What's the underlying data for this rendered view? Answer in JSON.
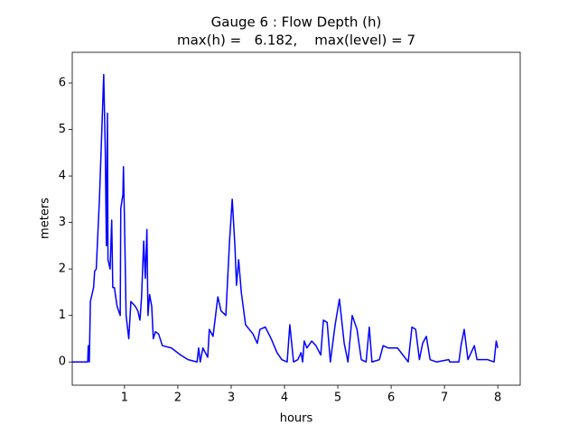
{
  "chart_data": {
    "type": "line",
    "title": "Gauge 6 : Flow Depth (h)",
    "subtitle": "max(h) =   6.182,    max(level) = 7",
    "x_label": "hours",
    "y_label": "meters",
    "color": "#0000ff",
    "xlim": [
      0.02,
      8.42
    ],
    "ylim": [
      -0.5,
      6.66
    ],
    "xticks": [
      1,
      2,
      3,
      4,
      5,
      6,
      7,
      8
    ],
    "yticks": [
      0,
      1,
      2,
      3,
      4,
      5,
      6
    ],
    "x": [
      0.02,
      0.31,
      0.32,
      0.34,
      0.36,
      0.42,
      0.44,
      0.47,
      0.49,
      0.53,
      0.56,
      0.59,
      0.61,
      0.64,
      0.66,
      0.68,
      0.69,
      0.73,
      0.76,
      0.78,
      0.81,
      0.86,
      0.92,
      0.93,
      0.97,
      0.98,
      1.0,
      1.03,
      1.08,
      1.12,
      1.2,
      1.25,
      1.29,
      1.32,
      1.36,
      1.39,
      1.42,
      1.44,
      1.47,
      1.51,
      1.54,
      1.58,
      1.64,
      1.71,
      1.88,
      2.05,
      2.19,
      2.36,
      2.39,
      2.42,
      2.47,
      2.56,
      2.59,
      2.66,
      2.75,
      2.81,
      2.9,
      2.97,
      3.02,
      3.07,
      3.1,
      3.14,
      3.19,
      3.27,
      3.34,
      3.41,
      3.49,
      3.54,
      3.64,
      3.75,
      3.86,
      3.95,
      4.05,
      4.1,
      4.17,
      4.25,
      4.31,
      4.34,
      4.37,
      4.42,
      4.51,
      4.59,
      4.68,
      4.73,
      4.8,
      4.86,
      4.95,
      5.03,
      5.12,
      5.19,
      5.27,
      5.36,
      5.44,
      5.53,
      5.59,
      5.64,
      5.78,
      5.85,
      5.95,
      6.12,
      6.22,
      6.32,
      6.39,
      6.46,
      6.53,
      6.59,
      6.66,
      6.73,
      6.85,
      7.08,
      7.1,
      7.27,
      7.31,
      7.37,
      7.44,
      7.56,
      7.61,
      7.81,
      7.93,
      7.97,
      8.0
    ],
    "values": [
      0,
      0,
      0.35,
      0,
      1.3,
      1.6,
      1.95,
      2.0,
      2.5,
      3.5,
      4.5,
      5.5,
      6.182,
      4.5,
      2.5,
      5.35,
      2.2,
      2.0,
      3.05,
      1.6,
      1.6,
      1.2,
      1.0,
      3.3,
      3.6,
      4.2,
      3.0,
      1.0,
      0.5,
      1.3,
      1.2,
      1.1,
      0.9,
      1.4,
      2.6,
      1.8,
      2.85,
      1.0,
      1.45,
      1.2,
      0.5,
      0.65,
      0.6,
      0.35,
      0.3,
      0.15,
      0.05,
      0,
      0.3,
      0,
      0.3,
      0.1,
      0.7,
      0.55,
      1.4,
      1.1,
      1.0,
      2.6,
      3.5,
      2.5,
      1.65,
      2.2,
      1.5,
      0.8,
      0.7,
      0.6,
      0.4,
      0.7,
      0.75,
      0.5,
      0.2,
      0.05,
      0,
      0.8,
      0,
      0.05,
      0.2,
      0,
      0.45,
      0.3,
      0.45,
      0.35,
      0.15,
      0.9,
      0.85,
      0,
      0.8,
      1.35,
      0.4,
      0,
      1.0,
      0.7,
      0.05,
      0,
      0.75,
      0,
      0.05,
      0.35,
      0.3,
      0.3,
      0.15,
      0,
      0.75,
      0.7,
      0.05,
      0.4,
      0.55,
      0.05,
      0,
      0.05,
      0,
      0,
      0.35,
      0.7,
      0.05,
      0.35,
      0.05,
      0.05,
      0,
      0.45,
      0.3
    ]
  }
}
